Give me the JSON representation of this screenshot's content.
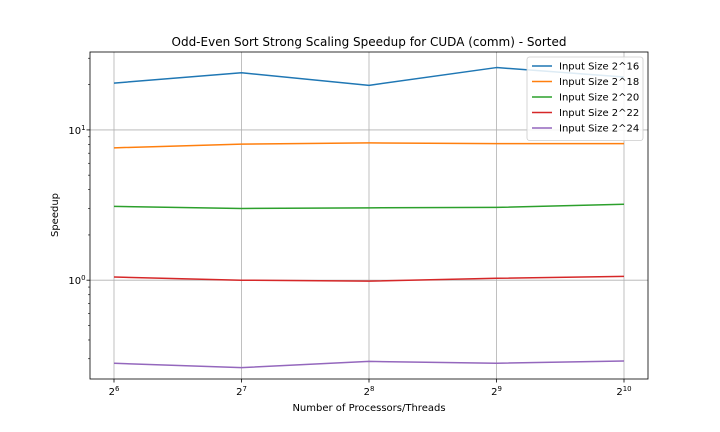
{
  "chart_data": {
    "type": "line",
    "title": "Odd-Even Sort Strong Scaling Speedup for CUDA (comm) - Sorted",
    "xlabel": "Number of Processors/Threads",
    "ylabel": "Speedup",
    "x_scale": "log2",
    "y_scale": "log10",
    "x": [
      64,
      128,
      256,
      512,
      1024
    ],
    "x_tick_labels": [
      {
        "base": "2",
        "exp": "6"
      },
      {
        "base": "2",
        "exp": "7"
      },
      {
        "base": "2",
        "exp": "8"
      },
      {
        "base": "2",
        "exp": "9"
      },
      {
        "base": "2",
        "exp": "10"
      }
    ],
    "y_ticks": [
      {
        "value": 1,
        "base": "10",
        "exp": "0"
      },
      {
        "value": 10,
        "base": "10",
        "exp": "1"
      }
    ],
    "ylim": [
      0.22,
      33
    ],
    "grid": true,
    "legend_position": "top-right",
    "series": [
      {
        "name": "Input Size 2^16",
        "color": "#1f77b4",
        "values": [
          20.5,
          24.0,
          19.8,
          26.0,
          22.5
        ]
      },
      {
        "name": "Input Size 2^18",
        "color": "#ff7f0e",
        "values": [
          7.6,
          8.05,
          8.2,
          8.1,
          8.1
        ]
      },
      {
        "name": "Input Size 2^20",
        "color": "#2ca02c",
        "values": [
          3.1,
          3.0,
          3.03,
          3.05,
          3.2
        ]
      },
      {
        "name": "Input Size 2^22",
        "color": "#d62728",
        "values": [
          1.05,
          1.0,
          0.985,
          1.03,
          1.06
        ]
      },
      {
        "name": "Input Size 2^24",
        "color": "#9467bd",
        "values": [
          0.28,
          0.262,
          0.288,
          0.28,
          0.29
        ]
      }
    ]
  }
}
